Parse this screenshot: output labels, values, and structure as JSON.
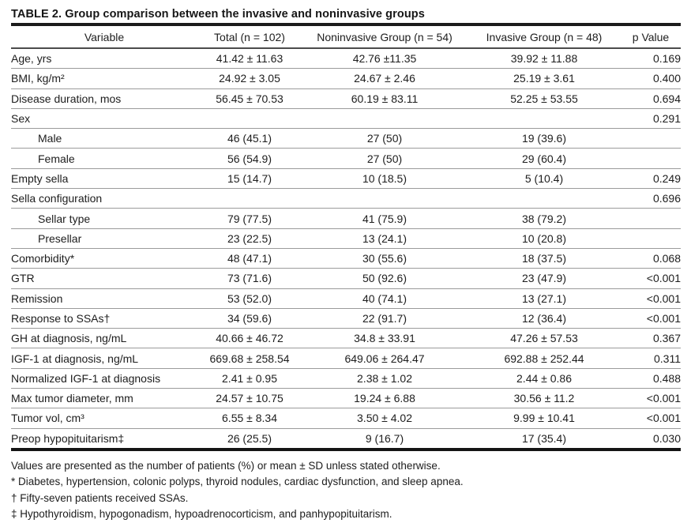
{
  "title": "TABLE 2. Group comparison between the invasive and noninvasive groups",
  "table": {
    "headers": {
      "variable": "Variable",
      "total": "Total (n = 102)",
      "noninvasive": "Noninvasive Group (n = 54)",
      "invasive": "Invasive Group (n = 48)",
      "p": "p Value"
    },
    "rows": [
      {
        "label": "Age, yrs",
        "indent": false,
        "total": "41.42 ± 11.63",
        "noninvasive": "42.76 ±11.35",
        "invasive": "39.92 ± 11.88",
        "p": "0.169"
      },
      {
        "label": "BMI, kg/m²",
        "indent": false,
        "total": "24.92 ± 3.05",
        "noninvasive": "24.67 ± 2.46",
        "invasive": "25.19 ± 3.61",
        "p": "0.400"
      },
      {
        "label": "Disease duration, mos",
        "indent": false,
        "total": "56.45 ± 70.53",
        "noninvasive": "60.19 ± 83.11",
        "invasive": "52.25 ± 53.55",
        "p": "0.694"
      },
      {
        "label": "Sex",
        "indent": false,
        "total": "",
        "noninvasive": "",
        "invasive": "",
        "p": "0.291"
      },
      {
        "label": "Male",
        "indent": true,
        "total": "46 (45.1)",
        "noninvasive": "27 (50)",
        "invasive": "19 (39.6)",
        "p": ""
      },
      {
        "label": "Female",
        "indent": true,
        "total": "56 (54.9)",
        "noninvasive": "27 (50)",
        "invasive": "29 (60.4)",
        "p": ""
      },
      {
        "label": "Empty sella",
        "indent": false,
        "total": "15 (14.7)",
        "noninvasive": "10 (18.5)",
        "invasive": "5 (10.4)",
        "p": "0.249"
      },
      {
        "label": "Sella configuration",
        "indent": false,
        "total": "",
        "noninvasive": "",
        "invasive": "",
        "p": "0.696"
      },
      {
        "label": "Sellar type",
        "indent": true,
        "total": "79 (77.5)",
        "noninvasive": "41 (75.9)",
        "invasive": "38 (79.2)",
        "p": ""
      },
      {
        "label": "Presellar",
        "indent": true,
        "total": "23 (22.5)",
        "noninvasive": "13 (24.1)",
        "invasive": "10 (20.8)",
        "p": ""
      },
      {
        "label": "Comorbidity*",
        "indent": false,
        "total": "48 (47.1)",
        "noninvasive": "30 (55.6)",
        "invasive": "18 (37.5)",
        "p": "0.068"
      },
      {
        "label": "GTR",
        "indent": false,
        "total": "73 (71.6)",
        "noninvasive": "50 (92.6)",
        "invasive": "23 (47.9)",
        "p": "<0.001"
      },
      {
        "label": "Remission",
        "indent": false,
        "total": "53 (52.0)",
        "noninvasive": "40 (74.1)",
        "invasive": "13 (27.1)",
        "p": "<0.001"
      },
      {
        "label": "Response to SSAs†",
        "indent": false,
        "total": "34 (59.6)",
        "noninvasive": "22 (91.7)",
        "invasive": "12 (36.4)",
        "p": "<0.001"
      },
      {
        "label": "GH at diagnosis, ng/mL",
        "indent": false,
        "total": "40.66 ± 46.72",
        "noninvasive": "34.8 ± 33.91",
        "invasive": "47.26 ± 57.53",
        "p": "0.367"
      },
      {
        "label": "IGF-1 at diagnosis, ng/mL",
        "indent": false,
        "total": "669.68 ± 258.54",
        "noninvasive": "649.06 ± 264.47",
        "invasive": "692.88 ± 252.44",
        "p": "0.311"
      },
      {
        "label": "Normalized IGF-1 at diagnosis",
        "indent": false,
        "total": "2.41 ± 0.95",
        "noninvasive": "2.38 ± 1.02",
        "invasive": "2.44 ± 0.86",
        "p": "0.488"
      },
      {
        "label": "Max tumor diameter, mm",
        "indent": false,
        "total": "24.57 ± 10.75",
        "noninvasive": "19.24 ± 6.88",
        "invasive": "30.56 ± 11.2",
        "p": "<0.001"
      },
      {
        "label": "Tumor vol, cm³",
        "indent": false,
        "total": "6.55 ± 8.34",
        "noninvasive": "3.50 ± 4.02",
        "invasive": "9.99 ± 10.41",
        "p": "<0.001"
      },
      {
        "label": "Preop hypopituitarism‡",
        "indent": false,
        "total": "26 (25.5)",
        "noninvasive": "9 (16.7)",
        "invasive": "17 (35.4)",
        "p": "0.030"
      }
    ]
  },
  "footnotes": [
    "Values are presented as the number of patients (%) or mean ± SD unless stated otherwise.",
    "* Diabetes, hypertension, colonic polyps, thyroid nodules, cardiac dysfunction, and sleep apnea.",
    "† Fifty-seven patients received SSAs.",
    "‡ Hypothyroidism, hypogonadism, hypoadrenocorticism, and panhypopituitarism."
  ],
  "colors": {
    "text": "#1d1d1d",
    "rule_heavy": "#1c1c1c",
    "rule_medium": "#4c4c4c",
    "rule_light": "#9b9b9b",
    "background": "#ffffff"
  }
}
